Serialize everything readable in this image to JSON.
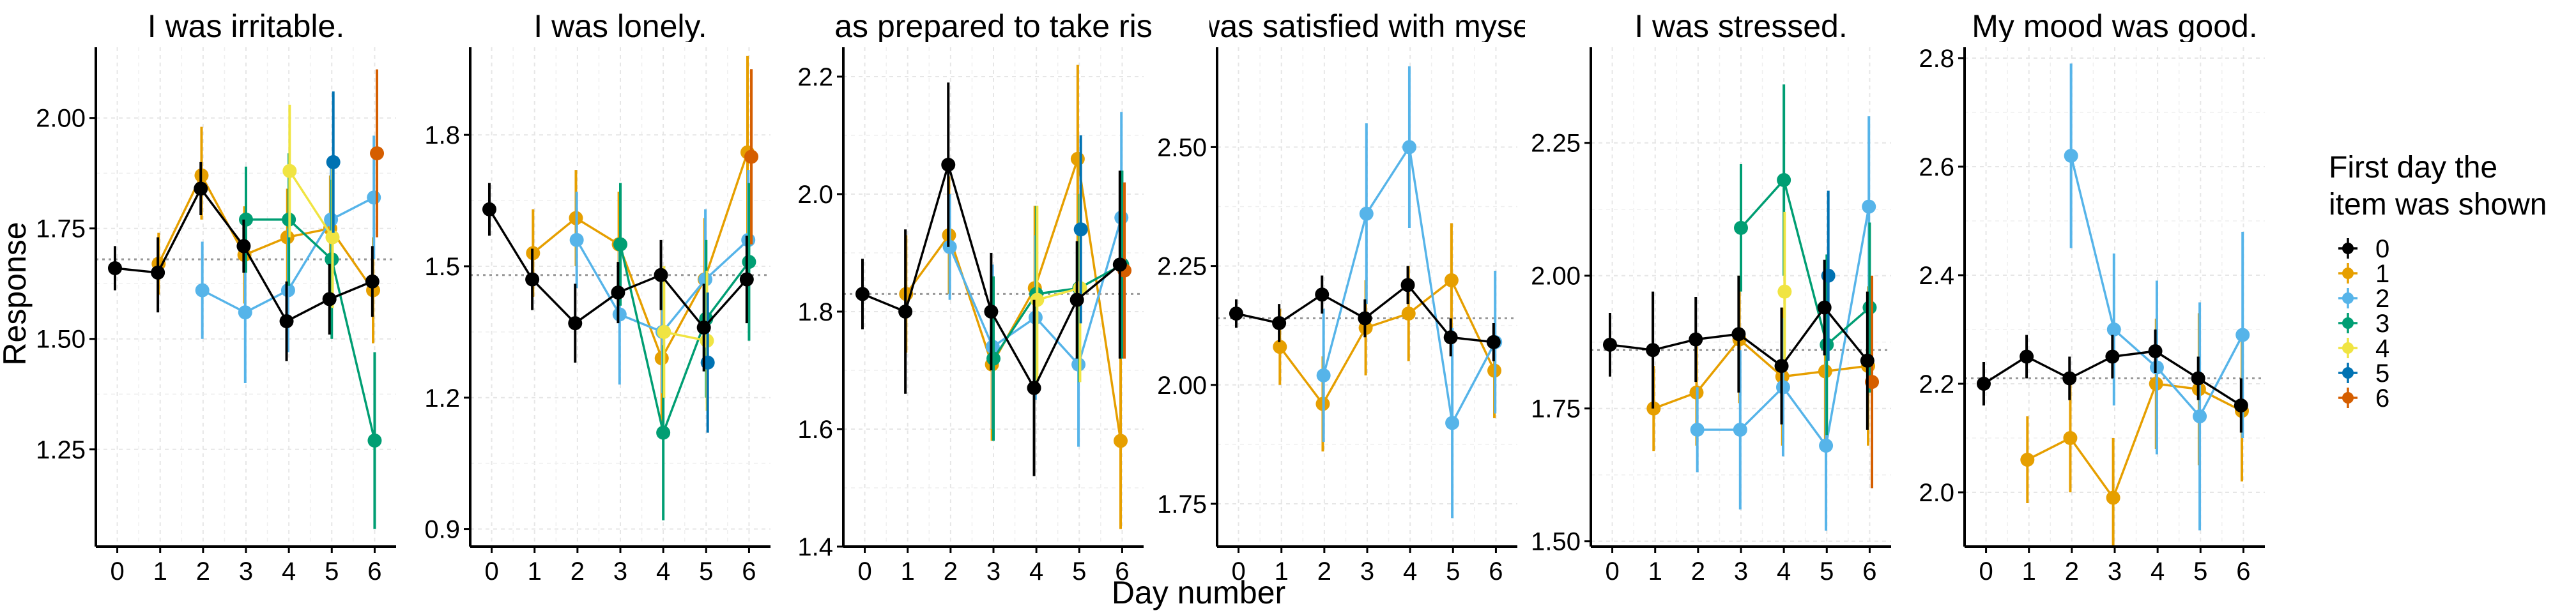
{
  "figure": {
    "ylabel": "Response",
    "xlabel": "Day number",
    "legend_title_line1": "First day the",
    "legend_title_line2": "item was shown",
    "legend_entries": [
      "0",
      "1",
      "2",
      "3",
      "4",
      "5",
      "6"
    ],
    "series_colors": {
      "0": "#000000",
      "1": "#E69F00",
      "2": "#56B4E9",
      "3": "#009E73",
      "4": "#F0E442",
      "5": "#0072B2",
      "6": "#D55E00"
    }
  },
  "chart_data": [
    {
      "type": "line",
      "title": "I was irritable.",
      "xlim": [
        -0.5,
        6.5
      ],
      "ylim": [
        1.03,
        2.16
      ],
      "yticks": [
        1.25,
        1.5,
        1.75,
        2.0
      ],
      "ytick_labels": [
        "1.25",
        "1.50",
        "1.75",
        "2.00"
      ],
      "xticks": [
        0,
        1,
        2,
        3,
        4,
        5,
        6
      ],
      "reference_line": 1.68,
      "series": [
        {
          "group": "0",
          "x": [
            0,
            1,
            2,
            3,
            4,
            5,
            6
          ],
          "y": [
            1.66,
            1.65,
            1.84,
            1.71,
            1.54,
            1.59,
            1.63
          ],
          "lo": [
            1.61,
            1.56,
            1.78,
            1.65,
            1.45,
            1.51,
            1.55
          ],
          "hi": [
            1.71,
            1.73,
            1.9,
            1.77,
            1.63,
            1.67,
            1.71
          ]
        },
        {
          "group": "1",
          "x": [
            1,
            2,
            3,
            4,
            5,
            6
          ],
          "y": [
            1.67,
            1.87,
            1.69,
            1.73,
            1.75,
            1.61
          ],
          "lo": [
            1.6,
            1.77,
            1.58,
            1.62,
            1.63,
            1.49
          ],
          "hi": [
            1.74,
            1.98,
            1.8,
            1.84,
            1.87,
            1.73
          ]
        },
        {
          "group": "2",
          "x": [
            2,
            3,
            4,
            5,
            6
          ],
          "y": [
            1.61,
            1.56,
            1.61,
            1.77,
            1.82
          ],
          "lo": [
            1.5,
            1.4,
            1.47,
            1.63,
            1.68
          ],
          "hi": [
            1.72,
            1.72,
            1.75,
            1.91,
            1.96
          ]
        },
        {
          "group": "3",
          "x": [
            3,
            4,
            5,
            6
          ],
          "y": [
            1.77,
            1.77,
            1.68,
            1.27
          ],
          "lo": [
            1.65,
            1.62,
            1.5,
            1.07
          ],
          "hi": [
            1.89,
            1.92,
            1.86,
            1.47
          ]
        },
        {
          "group": "4",
          "x": [
            4,
            5
          ],
          "y": [
            1.88,
            1.73
          ],
          "lo": [
            1.73,
            1.57
          ],
          "hi": [
            2.03,
            1.89
          ]
        },
        {
          "group": "5",
          "x": [
            5
          ],
          "y": [
            1.9
          ],
          "lo": [
            1.74
          ],
          "hi": [
            2.06
          ]
        },
        {
          "group": "6",
          "x": [
            6
          ],
          "y": [
            1.92
          ],
          "lo": [
            1.73
          ],
          "hi": [
            2.11
          ]
        }
      ]
    },
    {
      "type": "line",
      "title": "I was lonely.",
      "xlim": [
        -0.5,
        6.5
      ],
      "ylim": [
        0.86,
        2.0
      ],
      "yticks": [
        0.9,
        1.2,
        1.5,
        1.8
      ],
      "ytick_labels": [
        "0.9",
        "1.2",
        "1.5",
        "1.8"
      ],
      "xticks": [
        0,
        1,
        2,
        3,
        4,
        5,
        6
      ],
      "reference_line": 1.48,
      "series": [
        {
          "group": "0",
          "x": [
            0,
            1,
            2,
            3,
            4,
            5,
            6
          ],
          "y": [
            1.63,
            1.47,
            1.37,
            1.44,
            1.48,
            1.36,
            1.47
          ],
          "lo": [
            1.57,
            1.4,
            1.28,
            1.37,
            1.4,
            1.26,
            1.37
          ],
          "hi": [
            1.69,
            1.54,
            1.46,
            1.51,
            1.56,
            1.46,
            1.57
          ]
        },
        {
          "group": "1",
          "x": [
            1,
            2,
            3,
            4,
            5,
            6
          ],
          "y": [
            1.53,
            1.61,
            1.55,
            1.29,
            1.47,
            1.76
          ],
          "lo": [
            1.43,
            1.5,
            1.43,
            1.13,
            1.33,
            1.54
          ],
          "hi": [
            1.63,
            1.72,
            1.67,
            1.45,
            1.61,
            1.98
          ]
        },
        {
          "group": "2",
          "x": [
            2,
            3,
            4,
            5,
            6
          ],
          "y": [
            1.56,
            1.39,
            1.35,
            1.47,
            1.56
          ],
          "lo": [
            1.45,
            1.23,
            1.21,
            1.31,
            1.4
          ],
          "hi": [
            1.67,
            1.55,
            1.49,
            1.63,
            1.72
          ]
        },
        {
          "group": "3",
          "x": [
            3,
            4,
            5,
            6
          ],
          "y": [
            1.55,
            1.12,
            1.38,
            1.51
          ],
          "lo": [
            1.41,
            0.92,
            1.2,
            1.33
          ],
          "hi": [
            1.69,
            1.32,
            1.56,
            1.69
          ]
        },
        {
          "group": "4",
          "x": [
            4,
            5
          ],
          "y": [
            1.35,
            1.33
          ],
          "lo": [
            1.2,
            1.17
          ],
          "hi": [
            1.5,
            1.49
          ]
        },
        {
          "group": "5",
          "x": [
            5
          ],
          "y": [
            1.28
          ],
          "lo": [
            1.12
          ],
          "hi": [
            1.44
          ]
        },
        {
          "group": "6",
          "x": [
            6
          ],
          "y": [
            1.75
          ],
          "lo": [
            1.55
          ],
          "hi": [
            1.95
          ]
        }
      ]
    },
    {
      "type": "line",
      "title": "I was prepared to take risks.",
      "xlim": [
        -0.5,
        6.5
      ],
      "ylim": [
        1.4,
        2.25
      ],
      "yticks": [
        1.4,
        1.6,
        1.8,
        2.0,
        2.2
      ],
      "ytick_labels": [
        "1.4",
        "1.6",
        "1.8",
        "2.0",
        "2.2"
      ],
      "xticks": [
        0,
        1,
        2,
        3,
        4,
        5,
        6
      ],
      "reference_line": 1.83,
      "series": [
        {
          "group": "0",
          "x": [
            0,
            1,
            2,
            3,
            4,
            5,
            6
          ],
          "y": [
            1.83,
            1.8,
            2.05,
            1.8,
            1.67,
            1.82,
            1.88
          ],
          "lo": [
            1.77,
            1.66,
            1.91,
            1.7,
            1.52,
            1.72,
            1.72
          ],
          "hi": [
            1.89,
            1.94,
            2.19,
            1.9,
            1.82,
            1.92,
            2.04
          ]
        },
        {
          "group": "1",
          "x": [
            1,
            2,
            3,
            4,
            5,
            6
          ],
          "y": [
            1.83,
            1.93,
            1.71,
            1.84,
            2.06,
            1.58
          ],
          "lo": [
            1.73,
            1.83,
            1.58,
            1.7,
            1.9,
            1.43
          ],
          "hi": [
            1.93,
            2.03,
            1.84,
            1.98,
            2.22,
            1.73
          ]
        },
        {
          "group": "2",
          "x": [
            2,
            3,
            4,
            5,
            6
          ],
          "y": [
            1.91,
            1.74,
            1.79,
            1.71,
            1.96
          ],
          "lo": [
            1.82,
            1.6,
            1.65,
            1.57,
            1.78
          ],
          "hi": [
            2.0,
            1.88,
            1.93,
            1.85,
            2.14
          ]
        },
        {
          "group": "3",
          "x": [
            3,
            4,
            5,
            6
          ],
          "y": [
            1.72,
            1.83,
            1.84,
            1.88
          ],
          "lo": [
            1.58,
            1.68,
            1.68,
            1.72
          ],
          "hi": [
            1.86,
            1.98,
            2.0,
            2.04
          ]
        },
        {
          "group": "4",
          "x": [
            4,
            5
          ],
          "y": [
            1.82,
            1.84
          ],
          "lo": [
            1.66,
            1.68
          ],
          "hi": [
            1.98,
            2.0
          ]
        },
        {
          "group": "5",
          "x": [
            5
          ],
          "y": [
            1.94
          ],
          "lo": [
            1.78
          ],
          "hi": [
            2.1
          ]
        },
        {
          "group": "6",
          "x": [
            6
          ],
          "y": [
            1.87
          ],
          "lo": [
            1.72
          ],
          "hi": [
            2.02
          ]
        }
      ]
    },
    {
      "type": "line",
      "title": "I was satisfied with myself.",
      "xlim": [
        -0.5,
        6.5
      ],
      "ylim": [
        1.66,
        2.71
      ],
      "yticks": [
        1.75,
        2.0,
        2.25,
        2.5
      ],
      "ytick_labels": [
        "1.75",
        "2.00",
        "2.25",
        "2.50"
      ],
      "xticks": [
        0,
        1,
        2,
        3,
        4,
        5,
        6
      ],
      "reference_line": 2.14,
      "series": [
        {
          "group": "0",
          "x": [
            0,
            1,
            2,
            3,
            4,
            5,
            6
          ],
          "y": [
            2.15,
            2.13,
            2.19,
            2.14,
            2.21,
            2.1,
            2.09
          ],
          "lo": [
            2.12,
            2.09,
            2.15,
            2.1,
            2.17,
            2.06,
            2.05
          ],
          "hi": [
            2.18,
            2.17,
            2.23,
            2.18,
            2.25,
            2.14,
            2.13
          ]
        },
        {
          "group": "1",
          "x": [
            1,
            2,
            3,
            4,
            5,
            6
          ],
          "y": [
            2.08,
            1.96,
            2.12,
            2.15,
            2.22,
            2.03
          ],
          "lo": [
            2.0,
            1.86,
            2.02,
            2.05,
            2.1,
            1.93
          ],
          "hi": [
            2.16,
            2.06,
            2.22,
            2.25,
            2.34,
            2.13
          ]
        },
        {
          "group": "2",
          "x": [
            2,
            3,
            4,
            5,
            6
          ],
          "y": [
            2.02,
            2.36,
            2.5,
            1.92,
            2.09
          ],
          "lo": [
            1.88,
            2.17,
            2.33,
            1.72,
            1.94
          ],
          "hi": [
            2.16,
            2.55,
            2.67,
            2.12,
            2.24
          ]
        }
      ]
    },
    {
      "type": "line",
      "title": "I was stressed.",
      "xlim": [
        -0.5,
        6.5
      ],
      "ylim": [
        1.49,
        2.43
      ],
      "yticks": [
        1.5,
        1.75,
        2.0,
        2.25
      ],
      "ytick_labels": [
        "1.50",
        "1.75",
        "2.00",
        "2.25"
      ],
      "xticks": [
        0,
        1,
        2,
        3,
        4,
        5,
        6
      ],
      "reference_line": 1.86,
      "series": [
        {
          "group": "0",
          "x": [
            0,
            1,
            2,
            3,
            4,
            5,
            6
          ],
          "y": [
            1.87,
            1.86,
            1.88,
            1.89,
            1.83,
            1.94,
            1.84
          ],
          "lo": [
            1.81,
            1.75,
            1.8,
            1.78,
            1.72,
            1.85,
            1.71
          ],
          "hi": [
            1.93,
            1.97,
            1.96,
            2.0,
            1.94,
            2.03,
            1.97
          ]
        },
        {
          "group": "1",
          "x": [
            1,
            2,
            3,
            4,
            5,
            6
          ],
          "y": [
            1.75,
            1.78,
            1.88,
            1.81,
            1.82,
            1.83
          ],
          "lo": [
            1.67,
            1.68,
            1.76,
            1.68,
            1.68,
            1.68
          ],
          "hi": [
            1.83,
            1.88,
            2.0,
            1.94,
            1.96,
            1.98
          ]
        },
        {
          "group": "2",
          "x": [
            2,
            3,
            4,
            5,
            6
          ],
          "y": [
            1.71,
            1.71,
            1.79,
            1.68,
            2.13
          ],
          "lo": [
            1.63,
            1.56,
            1.66,
            1.52,
            1.96
          ],
          "hi": [
            1.79,
            1.86,
            1.92,
            1.84,
            2.3
          ]
        },
        {
          "group": "3",
          "x": [
            3,
            4,
            5,
            6
          ],
          "y": [
            2.09,
            2.18,
            1.87,
            1.94
          ],
          "lo": [
            1.97,
            2.0,
            1.7,
            1.78
          ],
          "hi": [
            2.21,
            2.36,
            2.04,
            2.1
          ]
        },
        {
          "group": "4",
          "x": [
            4
          ],
          "y": [
            1.97
          ],
          "lo": [
            1.82
          ],
          "hi": [
            2.12
          ]
        },
        {
          "group": "5",
          "x": [
            5
          ],
          "y": [
            2.0
          ],
          "lo": [
            1.84
          ],
          "hi": [
            2.16
          ]
        },
        {
          "group": "6",
          "x": [
            6
          ],
          "y": [
            1.8
          ],
          "lo": [
            1.6
          ],
          "hi": [
            2.0
          ]
        }
      ]
    },
    {
      "type": "line",
      "title": "My mood was good.",
      "xlim": [
        -0.5,
        6.5
      ],
      "ylim": [
        1.9,
        2.82
      ],
      "yticks": [
        2.0,
        2.2,
        2.4,
        2.6,
        2.8
      ],
      "ytick_labels": [
        "2.0",
        "2.2",
        "2.4",
        "2.6",
        "2.8"
      ],
      "xticks": [
        0,
        1,
        2,
        3,
        4,
        5,
        6
      ],
      "reference_line": 2.21,
      "series": [
        {
          "group": "0",
          "x": [
            0,
            1,
            2,
            3,
            4,
            5,
            6
          ],
          "y": [
            2.2,
            2.25,
            2.21,
            2.25,
            2.26,
            2.21,
            2.16
          ],
          "lo": [
            2.16,
            2.21,
            2.17,
            2.21,
            2.22,
            2.17,
            2.11
          ],
          "hi": [
            2.24,
            2.29,
            2.25,
            2.29,
            2.3,
            2.25,
            2.21
          ]
        },
        {
          "group": "1",
          "x": [
            1,
            2,
            3,
            4,
            5,
            6
          ],
          "y": [
            2.06,
            2.1,
            1.99,
            2.2,
            2.19,
            2.15
          ],
          "lo": [
            1.98,
            2.0,
            1.88,
            2.08,
            2.05,
            2.02
          ],
          "hi": [
            2.14,
            2.2,
            2.1,
            2.32,
            2.33,
            2.28
          ]
        },
        {
          "group": "2",
          "x": [
            2,
            3,
            4,
            5,
            6
          ],
          "y": [
            2.62,
            2.3,
            2.23,
            2.14,
            2.29
          ],
          "lo": [
            2.45,
            2.16,
            2.07,
            1.93,
            2.1
          ],
          "hi": [
            2.79,
            2.44,
            2.39,
            2.35,
            2.48
          ]
        }
      ]
    }
  ]
}
